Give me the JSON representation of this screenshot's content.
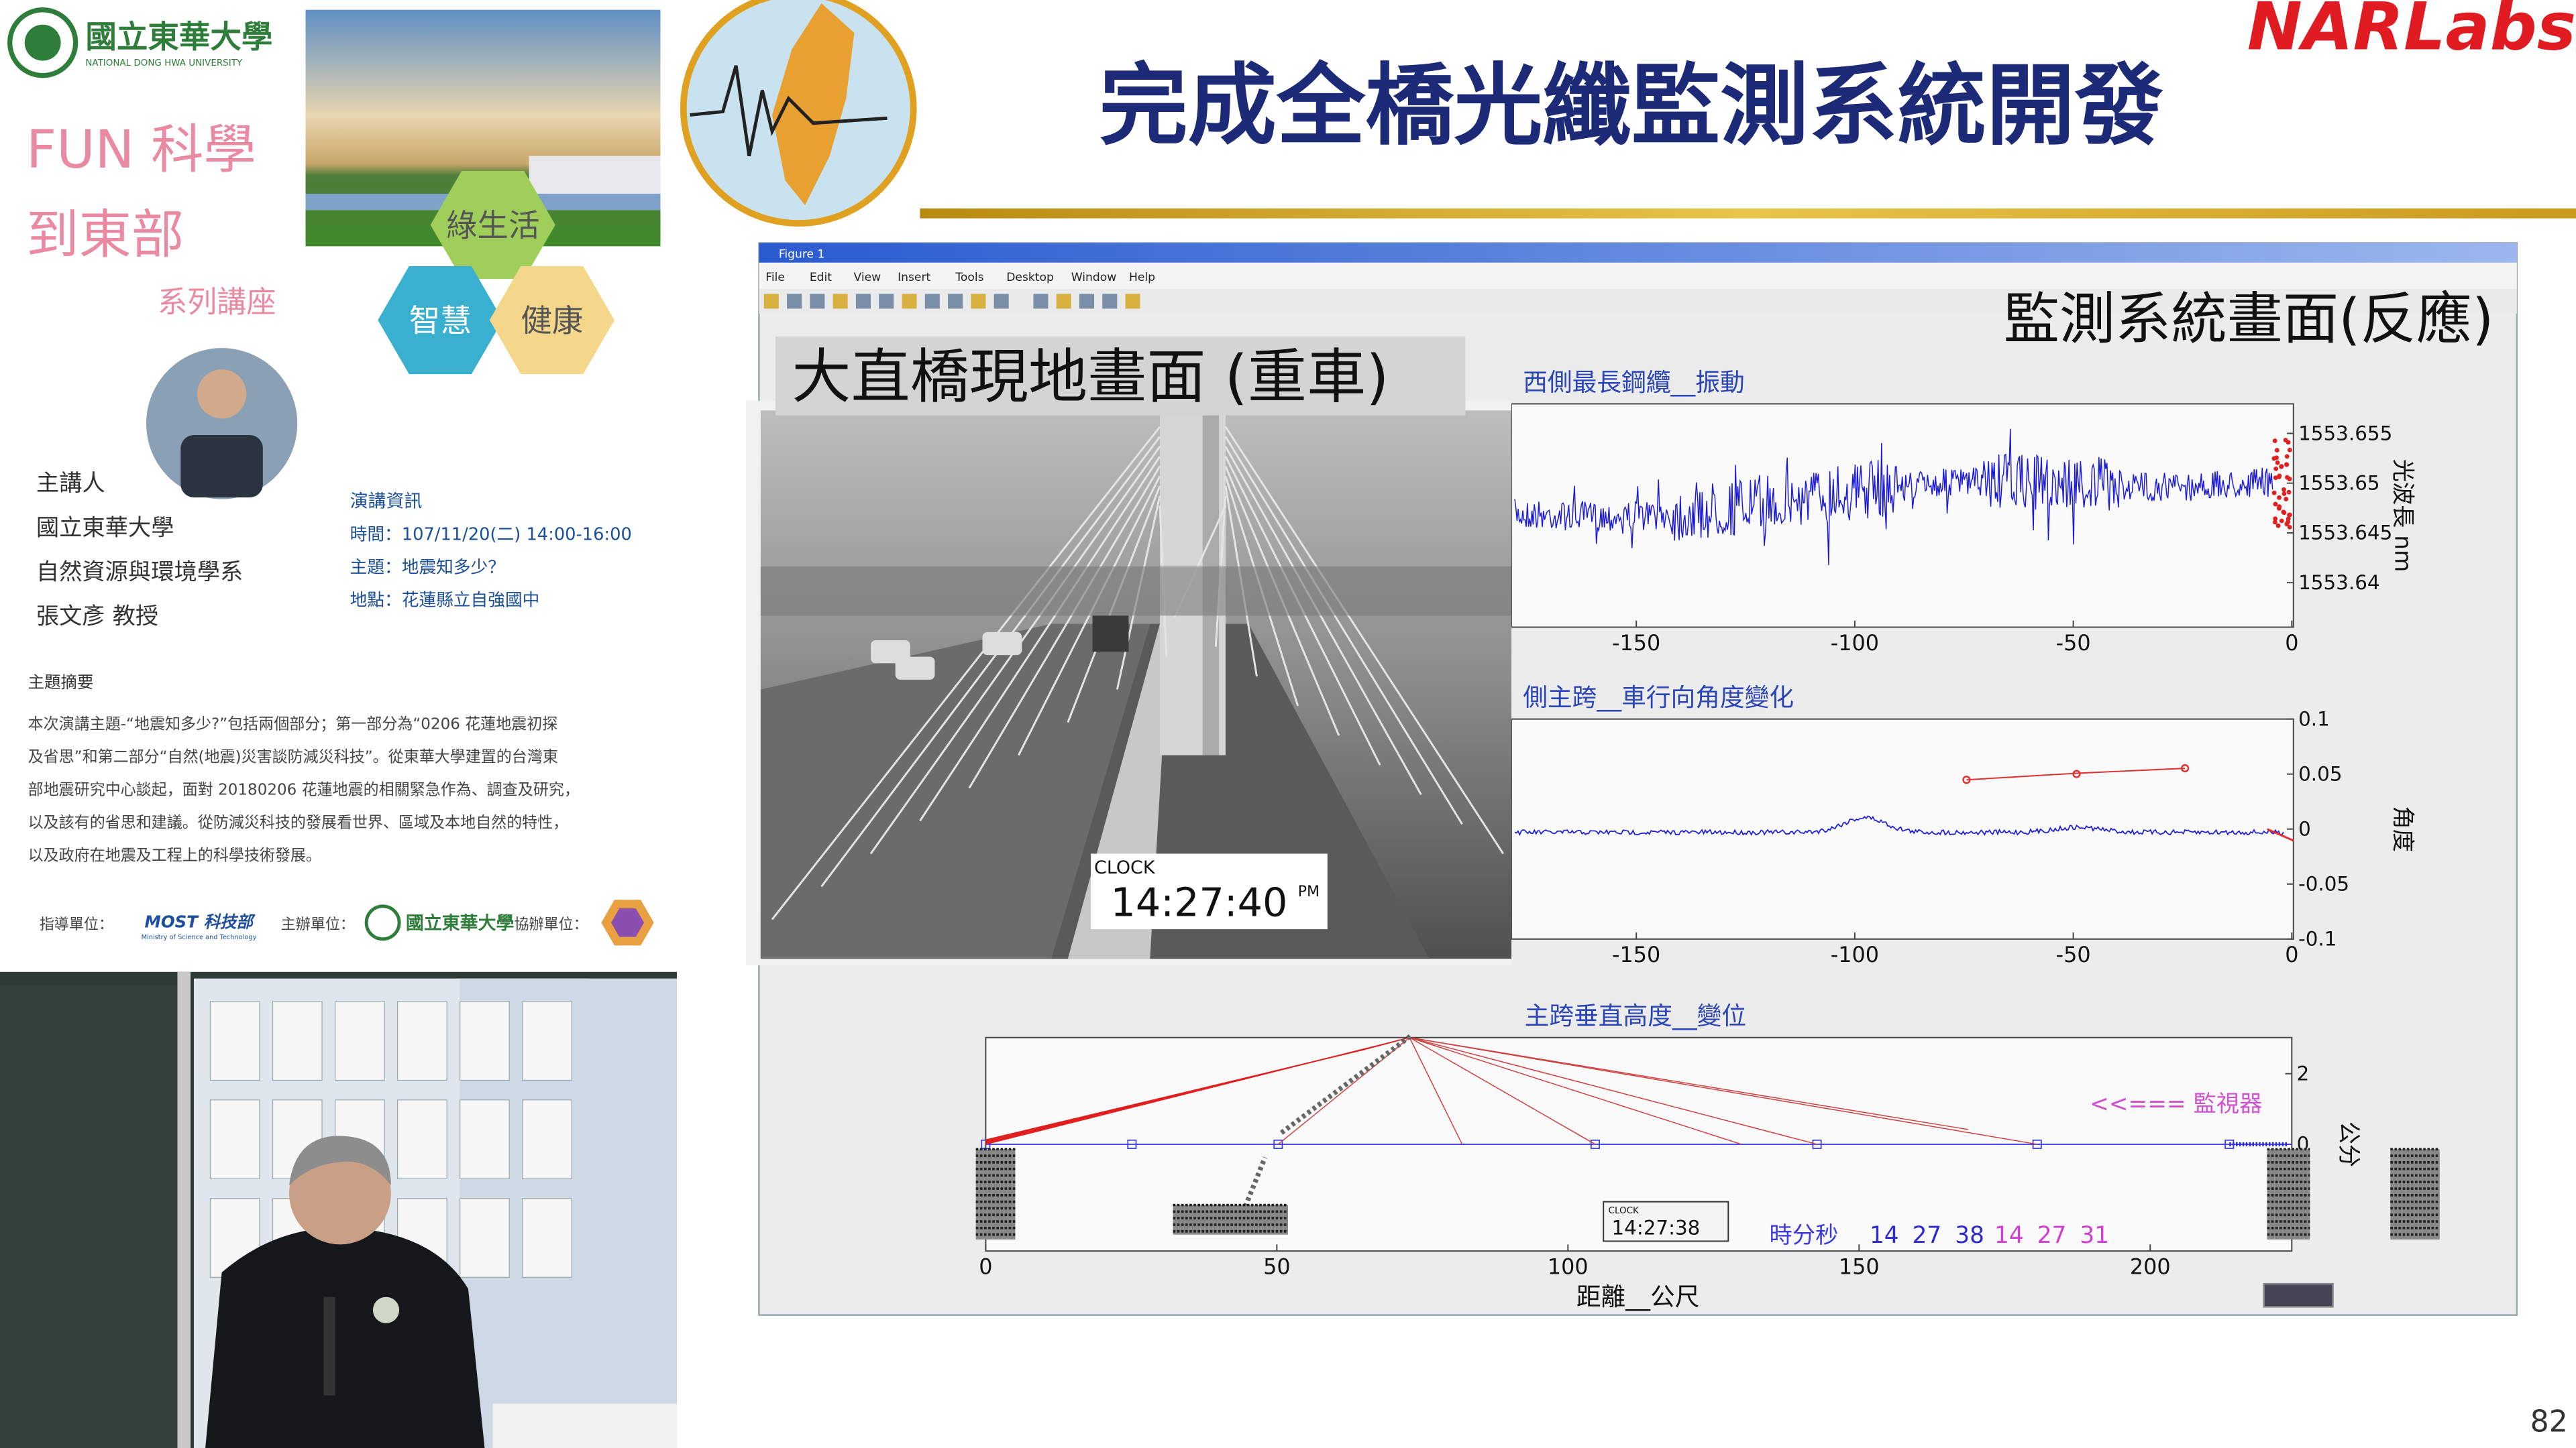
{
  "header": {
    "university": "國立東華大學",
    "university_en": "NATIONAL DONG HWA UNIVERSITY",
    "series_title": [
      "FUN 科學",
      "到東部"
    ],
    "series_subtitle": "系列講座",
    "themes": [
      "綠生活",
      "智慧",
      "健康"
    ]
  },
  "speaker": {
    "label": "主講人",
    "lines": [
      "國立東華大學",
      "自然資源與環境學系",
      "張文彥 教授"
    ]
  },
  "talk_info": {
    "heading": "演講資訊",
    "lines": [
      "時間：107/11/20(二) 14:00-16:00",
      "主題：地震知多少？",
      "地點：花蓮縣立自強國中"
    ]
  },
  "abstract": {
    "heading": "主題摘要",
    "lines": [
      "本次演講主題-“地震知多少?”包括兩個部分；第一部分為“0206 花蓮地震初探",
      "及省思”和第二部分“自然(地震)災害談防減災科技”。從東華大學建置的台灣東",
      "部地震研究中心談起，面對 20180206 花蓮地震的相關緊急作為、調查及研究，",
      "以及該有的省思和建議。從防減災科技的發展看世界、區域及本地自然的特性，",
      "以及政府在地震及工程上的科學技術發展。"
    ]
  },
  "sponsors": {
    "guide_label": "指導單位：",
    "guide": "MOST 科技部",
    "guide_en": "Ministry of Science and Technology",
    "host_label": "主辦單位：",
    "host": "國立東華大學",
    "co_label": "協辦單位："
  },
  "slide": {
    "title": "完成全橋光纖監測系統開發",
    "org": "NARLabs",
    "page": "82",
    "monitor_caption": "監測系統畫面(反應)",
    "camera_caption": "大直橋現地畫面 (重車)",
    "camera_clock_label": "CLOCK",
    "camera_clock": "14:27:40",
    "camera_clock_suffix": "PM"
  },
  "figure": {
    "window_title": "Figure 1",
    "menu": [
      "File",
      "Edit",
      "View",
      "Insert",
      "Tools",
      "Desktop",
      "Window",
      "Help"
    ],
    "plots": [
      {
        "title": "西側最長鋼纜__振動",
        "yticks": [
          "1553.655",
          "1553.65",
          "1553.645",
          "1553.64"
        ],
        "ylabel": "光波長 nm",
        "xticks": [
          "-150",
          "-100",
          "-50",
          "0"
        ]
      },
      {
        "title": "側主跨__車行向角度變化",
        "yticks": [
          "0.1",
          "0.05",
          "0",
          "-0.05",
          "-0.1"
        ],
        "ylabel": "角度",
        "xticks": [
          "-150",
          "-100",
          "-50",
          "0"
        ]
      },
      {
        "title": "主跨垂直高度__變位",
        "yticks": [
          "2",
          "0"
        ],
        "ylabel": "公分",
        "xticks": [
          "0",
          "50",
          "100",
          "150",
          "200"
        ],
        "xlabel": "距離__公尺"
      }
    ],
    "monitor_label": "<<=== 監視器",
    "clock_label": "CLOCK",
    "clock": "14:27:38",
    "time_label": "時分秒",
    "time_values": [
      "14",
      "27",
      "38",
      "14",
      "27",
      "31"
    ]
  }
}
